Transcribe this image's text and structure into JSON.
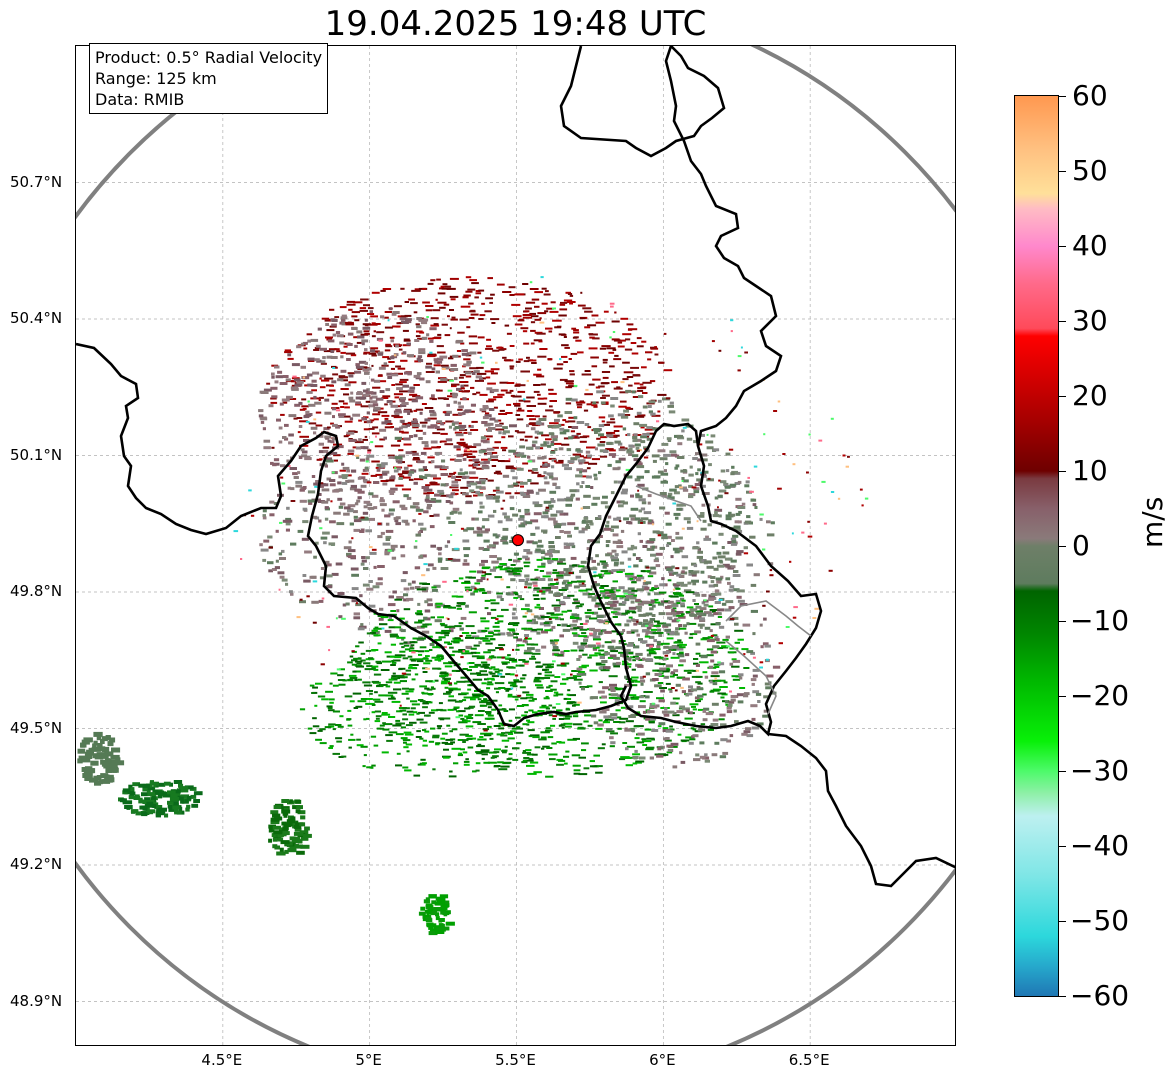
{
  "title": "19.04.2025 19:48 UTC",
  "info_box": {
    "product": "Product: 0.5° Radial Velocity",
    "range": "Range: 125 km",
    "data": "Data: RMIB"
  },
  "map": {
    "lon_range": [
      4.0,
      7.0
    ],
    "lat_range": [
      48.8,
      51.0
    ],
    "lon_ticks": [
      {
        "value": 4.5,
        "label": "4.5°E"
      },
      {
        "value": 5.0,
        "label": "5°E"
      },
      {
        "value": 5.5,
        "label": "5.5°E"
      },
      {
        "value": 6.0,
        "label": "6°E"
      },
      {
        "value": 6.5,
        "label": "6.5°E"
      }
    ],
    "lat_ticks": [
      {
        "value": 50.7,
        "label": "50.7°N"
      },
      {
        "value": 50.4,
        "label": "50.4°N"
      },
      {
        "value": 50.1,
        "label": "50.1°N"
      },
      {
        "value": 49.8,
        "label": "49.8°N"
      },
      {
        "value": 49.5,
        "label": "49.5°N"
      },
      {
        "value": 49.2,
        "label": "49.2°N"
      },
      {
        "value": 48.9,
        "label": "48.9°N"
      }
    ],
    "radar_site": {
      "lon": 5.505,
      "lat": 49.914
    },
    "range_ring_color": "#808080",
    "grid": true
  },
  "colorbar": {
    "unit": "m/s",
    "min": -60,
    "max": 60,
    "ticks": [
      {
        "value": 60,
        "label": "60"
      },
      {
        "value": 50,
        "label": "50"
      },
      {
        "value": 40,
        "label": "40"
      },
      {
        "value": 30,
        "label": "30"
      },
      {
        "value": 20,
        "label": "20"
      },
      {
        "value": 10,
        "label": "10"
      },
      {
        "value": 0,
        "label": "0"
      },
      {
        "value": -10,
        "label": "−10"
      },
      {
        "value": -20,
        "label": "−20"
      },
      {
        "value": -30,
        "label": "−30"
      },
      {
        "value": -40,
        "label": "−40"
      },
      {
        "value": -50,
        "label": "−50"
      },
      {
        "value": -60,
        "label": "−60"
      }
    ],
    "stops": [
      {
        "value": -60,
        "color": "#1f77b4"
      },
      {
        "value": -56,
        "color": "#26a9cc"
      },
      {
        "value": -52,
        "color": "#2cd8dc"
      },
      {
        "value": -44,
        "color": "#7ee6e6"
      },
      {
        "value": -36,
        "color": "#bdf0f0"
      },
      {
        "value": -33,
        "color": "#8ff0a8"
      },
      {
        "value": -30,
        "color": "#4dfa6a"
      },
      {
        "value": -26,
        "color": "#08f008"
      },
      {
        "value": -18,
        "color": "#00b800"
      },
      {
        "value": -12,
        "color": "#008800"
      },
      {
        "value": -6,
        "color": "#006400"
      },
      {
        "value": -5,
        "color": "#5e7c5e"
      },
      {
        "value": 0,
        "color": "#6e7f68"
      },
      {
        "value": 1,
        "color": "#8a7a7a"
      },
      {
        "value": 5,
        "color": "#88606a"
      },
      {
        "value": 9,
        "color": "#7a3a40"
      },
      {
        "value": 10,
        "color": "#6e0000"
      },
      {
        "value": 16,
        "color": "#a00000"
      },
      {
        "value": 22,
        "color": "#d00000"
      },
      {
        "value": 28,
        "color": "#ff0000"
      },
      {
        "value": 29,
        "color": "#ff4a5a"
      },
      {
        "value": 35,
        "color": "#ff6a8a"
      },
      {
        "value": 40,
        "color": "#ff88cc"
      },
      {
        "value": 45,
        "color": "#ffbcc4"
      },
      {
        "value": 47,
        "color": "#ffe09a"
      },
      {
        "value": 53,
        "color": "#ffc080"
      },
      {
        "value": 60,
        "color": "#ff9850"
      }
    ]
  },
  "colors": {
    "border": "#000000",
    "grid": "#b0b0b0",
    "site_marker": "#ff0000"
  }
}
